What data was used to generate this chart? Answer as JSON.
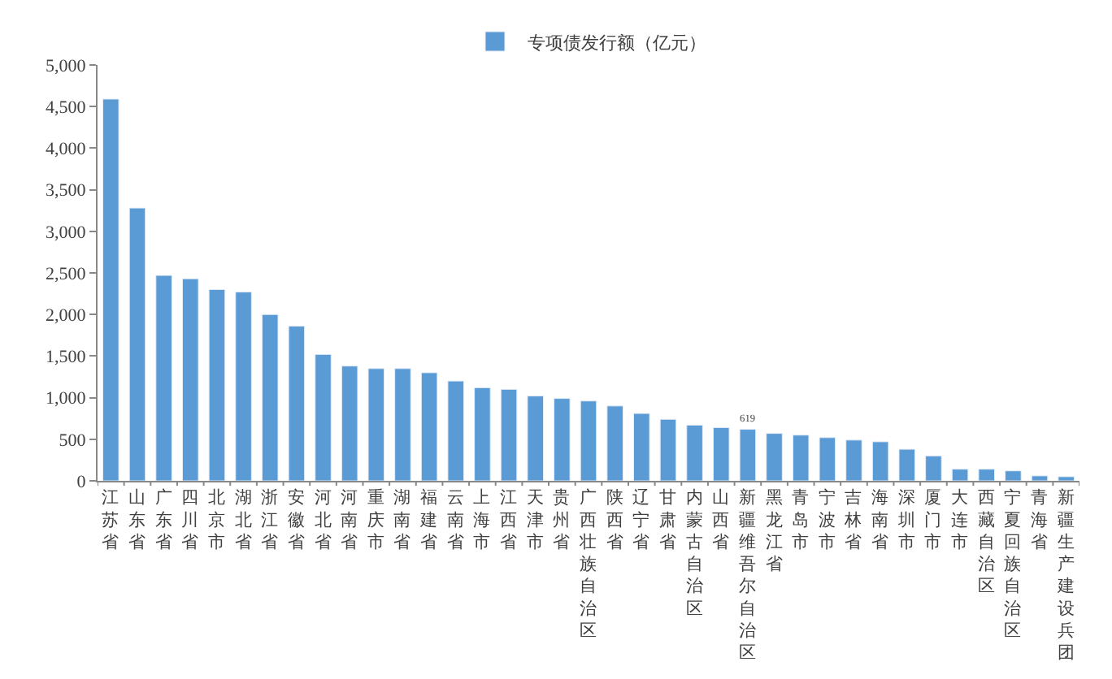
{
  "chart_data": {
    "type": "bar",
    "categories": [
      "江苏省",
      "山东省",
      "广东省",
      "四川省",
      "北京市",
      "湖北省",
      "浙江省",
      "安徽省",
      "河北省",
      "河南省",
      "重庆市",
      "湖南省",
      "福建省",
      "云南省",
      "上海市",
      "江西省",
      "天津市",
      "贵州省",
      "广西壮族自治区",
      "陕西省",
      "辽宁省",
      "甘肃省",
      "内蒙古自治区",
      "山西省",
      "新疆维吾尔自治区",
      "黑龙江省",
      "青岛市",
      "宁波市",
      "吉林省",
      "海南省",
      "深圳市",
      "厦门市",
      "大连市",
      "西藏自治区",
      "宁夏回族自治区",
      "青海省",
      "新疆生产建设兵团"
    ],
    "series": [
      {
        "name": "专项债发行额（亿元）",
        "color": "#5b9bd5",
        "values": [
          4590,
          3280,
          2470,
          2430,
          2300,
          2270,
          2000,
          1860,
          1520,
          1380,
          1350,
          1350,
          1300,
          1200,
          1120,
          1100,
          1020,
          990,
          960,
          900,
          810,
          740,
          670,
          640,
          619,
          570,
          550,
          520,
          490,
          470,
          380,
          300,
          140,
          140,
          120,
          60,
          50
        ],
        "value_labels": [
          null,
          null,
          null,
          null,
          null,
          null,
          null,
          null,
          null,
          null,
          null,
          null,
          null,
          null,
          null,
          null,
          null,
          null,
          null,
          null,
          null,
          null,
          null,
          null,
          "619",
          null,
          null,
          null,
          null,
          null,
          null,
          null,
          null,
          null,
          null,
          null,
          null
        ]
      }
    ],
    "ylim": [
      0,
      5000
    ],
    "yticks": [
      0,
      {
        "value": 500,
        "label": "500"
      },
      {
        "value": 1000,
        "label": "1,000"
      },
      {
        "value": 1500,
        "label": "1,500"
      },
      {
        "value": 2000,
        "label": "2,000"
      },
      {
        "value": 2500,
        "label": "2,500"
      },
      {
        "value": 3000,
        "label": "3,000"
      },
      {
        "value": 3500,
        "label": "3,500"
      },
      {
        "value": 4000,
        "label": "4,000"
      },
      {
        "value": 4500,
        "label": "4,500"
      },
      {
        "value": 5000,
        "label": "5,000"
      }
    ],
    "legend": "top"
  }
}
